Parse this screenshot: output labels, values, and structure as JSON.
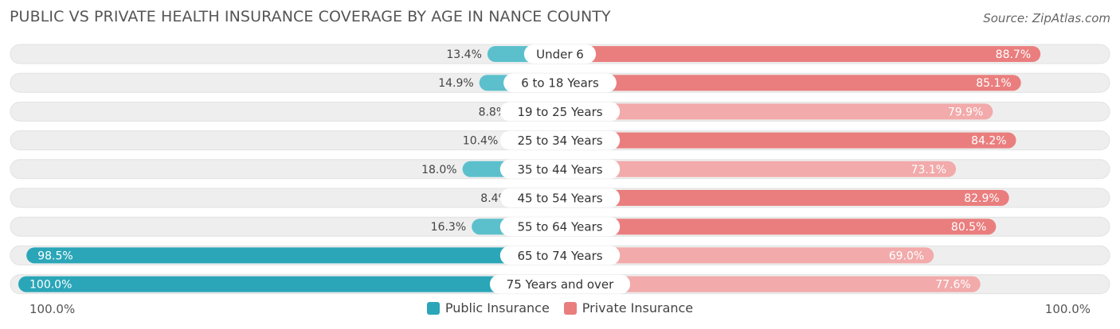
{
  "title": "PUBLIC VS PRIVATE HEALTH INSURANCE COVERAGE BY AGE IN NANCE COUNTY",
  "source": "Source: ZipAtlas.com",
  "colors": {
    "public": "#5cc0cc",
    "public_dark": "#2aa6b8",
    "private": "#ea7e7e",
    "private_light": "#f2aaaa",
    "track": "#eeeeee"
  },
  "legend": {
    "public_label": "Public Insurance",
    "private_label": "Private Insurance"
  },
  "axis": {
    "left_label": "100.0%",
    "right_label": "100.0%"
  },
  "chart_data": {
    "type": "bar",
    "orientation": "horizontal-diverging",
    "categories": [
      "Under 6",
      "6 to 18 Years",
      "19 to 25 Years",
      "25 to 34 Years",
      "35 to 44 Years",
      "45 to 54 Years",
      "55 to 64 Years",
      "65 to 74 Years",
      "75 Years and over"
    ],
    "series": [
      {
        "name": "Public Insurance",
        "values": [
          13.4,
          14.9,
          8.8,
          10.4,
          18.0,
          8.4,
          16.3,
          98.5,
          100.0
        ],
        "labels": [
          "13.4%",
          "14.9%",
          "8.8%",
          "10.4%",
          "18.0%",
          "8.4%",
          "16.3%",
          "98.5%",
          "100.0%"
        ]
      },
      {
        "name": "Private Insurance",
        "values": [
          88.7,
          85.1,
          79.9,
          84.2,
          73.1,
          82.9,
          80.5,
          69.0,
          77.6
        ],
        "labels": [
          "88.7%",
          "85.1%",
          "79.9%",
          "84.2%",
          "73.1%",
          "82.9%",
          "80.5%",
          "69.0%",
          "77.6%"
        ]
      }
    ],
    "xlim": [
      -100,
      100
    ],
    "legend_position": "bottom-center"
  }
}
